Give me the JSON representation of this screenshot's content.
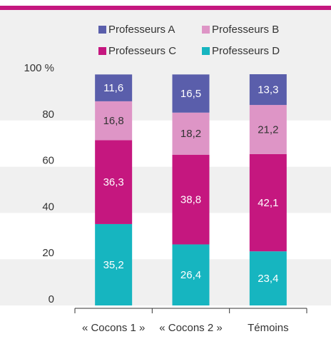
{
  "chart_data": {
    "type": "stacked_bar",
    "categories": [
      "« Cocons 1 »",
      "« Cocons 2 »",
      "Témoins"
    ],
    "series": [
      {
        "name": "Professeurs A",
        "color": "#5a5eab",
        "label_color": "#ffffff",
        "values": [
          11.6,
          16.5,
          13.3
        ],
        "value_labels": [
          "11,6",
          "16,5",
          "13,3"
        ]
      },
      {
        "name": "Professeurs B",
        "color": "#de95c6",
        "label_color": "#333333",
        "values": [
          16.8,
          18.2,
          21.2
        ],
        "value_labels": [
          "16,8",
          "18,2",
          "21,2"
        ]
      },
      {
        "name": "Professeurs C",
        "color": "#c5177f",
        "label_color": "#ffffff",
        "values": [
          36.3,
          38.8,
          42.1
        ],
        "value_labels": [
          "36,3",
          "38,8",
          "42,1"
        ]
      },
      {
        "name": "Professeurs D",
        "color": "#16b5c0",
        "label_color": "#ffffff",
        "values": [
          35.2,
          26.4,
          23.4
        ],
        "value_labels": [
          "35,2",
          "26,4",
          "23,4"
        ]
      }
    ],
    "ylim": [
      0,
      100
    ],
    "yticks": [
      0,
      20,
      40,
      60,
      80,
      {
        "value": 100,
        "label": "100 %"
      }
    ],
    "grid": true
  }
}
